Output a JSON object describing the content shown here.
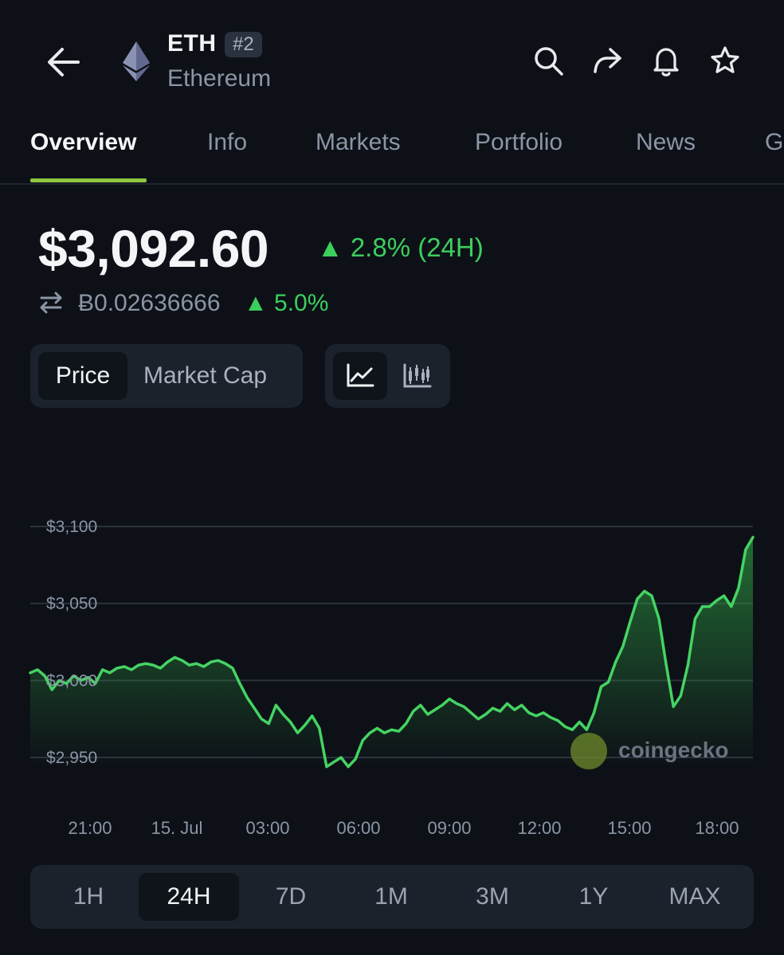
{
  "header": {
    "symbol": "ETH",
    "rank": "#2",
    "name": "Ethereum",
    "icons": [
      "back-arrow-icon",
      "ethereum-icon",
      "search-icon",
      "share-icon",
      "bell-icon",
      "star-icon"
    ]
  },
  "tabs": [
    "Overview",
    "Info",
    "Markets",
    "Portfolio",
    "News",
    "G"
  ],
  "active_tab": "Overview",
  "price": {
    "usd": "$3,092.60",
    "change_24h": "▲ 2.8% (24H)",
    "btc": "Ƀ0.02636666",
    "btc_change": "▲ 5.0%"
  },
  "toggles": {
    "price": "Price",
    "market_cap": "Market Cap",
    "selected": "Price",
    "chart_icons": [
      "line-chart-icon",
      "candlestick-icon"
    ]
  },
  "watermark": "coingecko",
  "ranges": [
    "1H",
    "24H",
    "7D",
    "1M",
    "3M",
    "1Y",
    "MAX"
  ],
  "active_range": "24H",
  "colors": {
    "accent": "#3ccf5e",
    "tab_underline": "#8dc63f",
    "background": "#0d1117"
  },
  "chart_data": {
    "type": "area",
    "title": "",
    "xlabel": "",
    "ylabel": "",
    "y_ticks": [
      "$3,100",
      "$3,050",
      "$3,000",
      "$2,950"
    ],
    "x_ticks": [
      "21:00",
      "15. Jul",
      "03:00",
      "06:00",
      "09:00",
      "12:00",
      "15:00",
      "18:00"
    ],
    "ylim": [
      2950,
      3100
    ],
    "grid": true,
    "series": [
      {
        "values": [
          3005,
          3007,
          3003,
          2994,
          3000,
          2998,
          3003,
          3000,
          3002,
          2998,
          3007,
          3005,
          3008,
          3009,
          3007,
          3010,
          3011,
          3010,
          3008,
          3012,
          3015,
          3013,
          3010,
          3011,
          3009,
          3012,
          3013,
          3011,
          3008,
          2998,
          2989,
          2982,
          2975,
          2972,
          2984,
          2978,
          2973,
          2966,
          2971,
          2977,
          2969,
          2944,
          2947,
          2950,
          2944,
          2949,
          2961,
          2966,
          2969,
          2966,
          2968,
          2967,
          2972,
          2980,
          2984,
          2978,
          2981,
          2984,
          2988,
          2985,
          2983,
          2979,
          2975,
          2978,
          2982,
          2980,
          2985,
          2981,
          2984,
          2979,
          2977,
          2979,
          2976,
          2974,
          2970,
          2968,
          2973,
          2968,
          2979,
          2996,
          2999,
          3012,
          3022,
          3038,
          3053,
          3058,
          3055,
          3040,
          3010,
          2983,
          2990,
          3010,
          3040,
          3048,
          3048,
          3052,
          3055,
          3048,
          3060,
          3085,
          3093
        ]
      }
    ]
  }
}
